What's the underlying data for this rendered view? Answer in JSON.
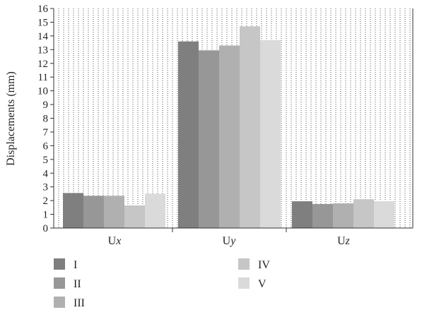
{
  "chart_data": {
    "type": "bar",
    "ylabel": "Displacements (mm)",
    "ylim": [
      0,
      16
    ],
    "yticks": [
      0,
      1,
      2,
      3,
      4,
      5,
      6,
      7,
      8,
      9,
      10,
      11,
      12,
      13,
      14,
      15,
      16
    ],
    "grid": "dotted vertical lines",
    "legend_placement": "bottom",
    "categories": [
      {
        "prefix": "U",
        "suffix": "x"
      },
      {
        "prefix": "U",
        "suffix": "y"
      },
      {
        "prefix": "U",
        "suffix": "z"
      }
    ],
    "series": [
      {
        "name": "I",
        "color": "#7f7f7f",
        "values": [
          2.55,
          13.6,
          1.95
        ]
      },
      {
        "name": "II",
        "color": "#979797",
        "values": [
          2.35,
          12.95,
          1.75
        ]
      },
      {
        "name": "III",
        "color": "#b0b0b0",
        "values": [
          2.35,
          13.3,
          1.8
        ]
      },
      {
        "name": "IV",
        "color": "#c6c6c6",
        "values": [
          1.65,
          14.7,
          2.1
        ]
      },
      {
        "name": "V",
        "color": "#dadada",
        "values": [
          2.5,
          13.7,
          1.95
        ]
      }
    ]
  }
}
